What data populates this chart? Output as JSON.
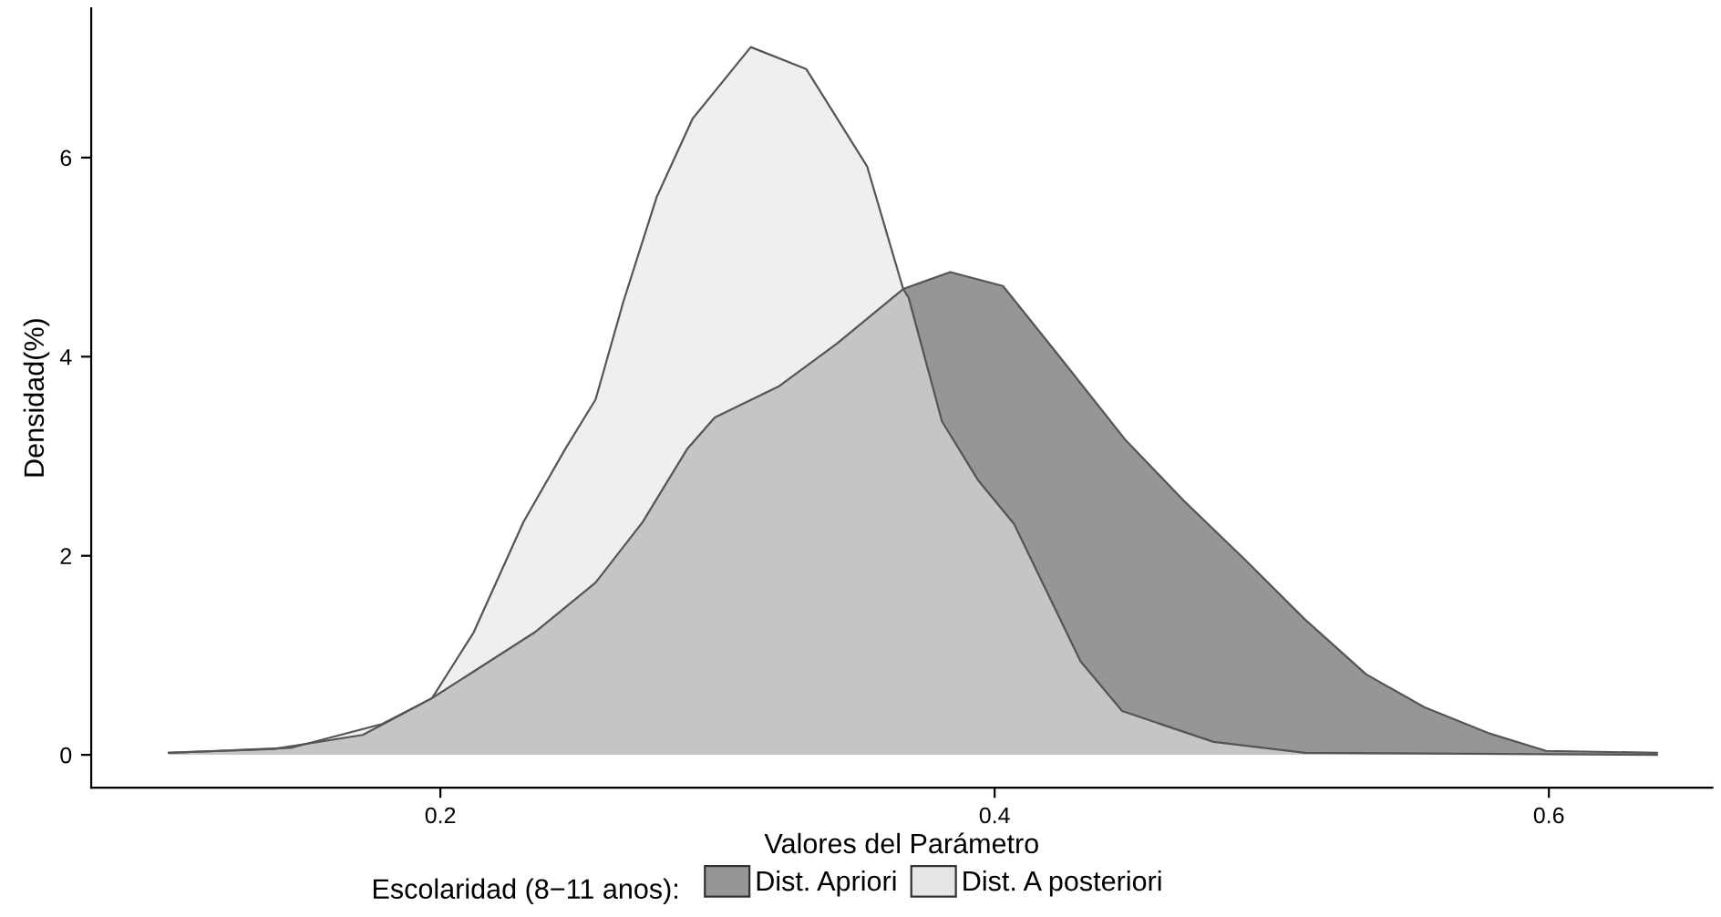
{
  "chart_data": {
    "type": "area",
    "xlabel": "Valores del Parámetro",
    "ylabel": "Densidad(%)",
    "legend_title": "Escolaridad (8−11 anos):",
    "legend": "bottom",
    "grid": false,
    "xlim": [
      0.074,
      0.659
    ],
    "ylim": [
      -0.33,
      7.5
    ],
    "xticks": [
      0.2,
      0.4,
      0.6
    ],
    "yticks": [
      0,
      2,
      4,
      6
    ],
    "series": [
      {
        "name": "Dist. Apriori",
        "color": "#969696",
        "x": [
          0.102,
          0.14,
          0.172,
          0.197,
          0.234,
          0.256,
          0.273,
          0.289,
          0.299,
          0.322,
          0.343,
          0.367,
          0.384,
          0.403,
          0.424,
          0.447,
          0.468,
          0.49,
          0.512,
          0.534,
          0.555,
          0.578,
          0.599,
          0.639
        ],
        "values": [
          0.02,
          0.06,
          0.2,
          0.57,
          1.23,
          1.73,
          2.34,
          3.07,
          3.39,
          3.7,
          4.13,
          4.68,
          4.85,
          4.71,
          3.98,
          3.17,
          2.56,
          1.97,
          1.36,
          0.81,
          0.48,
          0.22,
          0.04,
          0.02
        ]
      },
      {
        "name": "Dist. A posteriori",
        "color": "#e5e5e5",
        "x": [
          0.102,
          0.146,
          0.179,
          0.197,
          0.212,
          0.23,
          0.245,
          0.256,
          0.266,
          0.278,
          0.291,
          0.312,
          0.332,
          0.354,
          0.367,
          0.369,
          0.381,
          0.394,
          0.407,
          0.431,
          0.446,
          0.479,
          0.512,
          0.639
        ],
        "values": [
          0.02,
          0.07,
          0.31,
          0.57,
          1.23,
          2.34,
          3.07,
          3.57,
          4.55,
          5.6,
          6.39,
          7.11,
          6.89,
          5.91,
          4.68,
          4.59,
          3.35,
          2.76,
          2.32,
          0.94,
          0.44,
          0.13,
          0.02,
          0.0
        ]
      }
    ]
  }
}
